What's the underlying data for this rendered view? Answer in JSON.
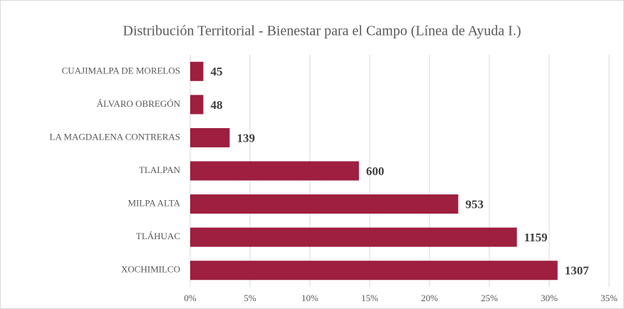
{
  "chart_data": {
    "type": "hbar",
    "title": "Distribución Territorial  - Bienestar para el Campo (Línea de Ayuda I.)",
    "categories": [
      "CUAJIMALPA DE MORELOS",
      "ÁLVARO OBREGÓN",
      "LA MAGDALENA CONTRERAS",
      "TLALPAN",
      "MILPA ALTA",
      "TLÁHUAC",
      "XOCHIMILCO"
    ],
    "values": [
      1.1,
      1.1,
      3.3,
      14.1,
      22.4,
      27.3,
      30.7
    ],
    "counts": [
      45,
      48,
      139,
      600,
      953,
      1159,
      1307
    ],
    "color": "#9e1f3f",
    "xlim": [
      0,
      35
    ],
    "xticks": [
      {
        "value": 0,
        "label": "0%"
      },
      {
        "value": 5,
        "label": "5%"
      },
      {
        "value": 10,
        "label": "10%"
      },
      {
        "value": 15,
        "label": "15%"
      },
      {
        "value": 20,
        "label": "20%"
      },
      {
        "value": 25,
        "label": "25%"
      },
      {
        "value": 30,
        "label": "30%"
      },
      {
        "value": 35,
        "label": "35%"
      }
    ],
    "grid": true
  }
}
